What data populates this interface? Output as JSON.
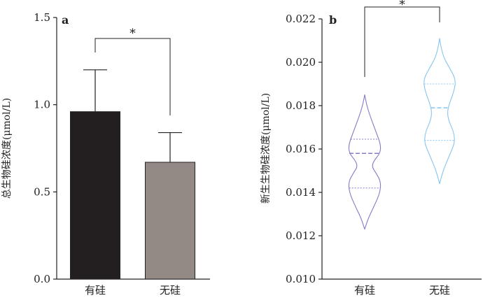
{
  "chart_data": [
    {
      "type": "bar",
      "panel_label": "a",
      "ylabel": "总生物硅浓度(μmol/L)",
      "categories": [
        "有硅",
        "无硅"
      ],
      "values": [
        0.96,
        0.67
      ],
      "error_upper": [
        1.2,
        0.84
      ],
      "ylim": [
        0,
        1.5
      ],
      "yticks": [
        0.0,
        0.5,
        1.0,
        1.5
      ],
      "ytick_labels": [
        "0.0",
        "0.5",
        "1.0",
        "1.5"
      ],
      "colors": [
        "#231f20",
        "#938a86"
      ],
      "significance": "*"
    },
    {
      "type": "violin",
      "panel_label": "b",
      "ylabel": "新生生物硅浓度(μmol/L)",
      "categories": [
        "有硅",
        "无硅"
      ],
      "ylim": [
        0.01,
        0.022
      ],
      "yticks": [
        0.01,
        0.012,
        0.014,
        0.016,
        0.018,
        0.02,
        0.022
      ],
      "ytick_labels": [
        "0.010",
        "0.012",
        "0.014",
        "0.016",
        "0.018",
        "0.020",
        "0.022"
      ],
      "series": [
        {
          "category": "有硅",
          "color": "#8a78c8",
          "min": 0.0123,
          "max": 0.0185,
          "q1": 0.0142,
          "median": 0.0158,
          "q3": 0.01645,
          "profile": [
            [
              0.0123,
              0
            ],
            [
              0.0128,
              5
            ],
            [
              0.0134,
              14
            ],
            [
              0.014,
              22
            ],
            [
              0.0145,
              23
            ],
            [
              0.0149,
              16
            ],
            [
              0.0152,
              10
            ],
            [
              0.0155,
              14
            ],
            [
              0.0158,
              22
            ],
            [
              0.0162,
              23
            ],
            [
              0.0168,
              16
            ],
            [
              0.0175,
              8
            ],
            [
              0.018,
              3
            ],
            [
              0.0185,
              0
            ]
          ]
        },
        {
          "category": "无硅",
          "color": "#86c6ee",
          "min": 0.0144,
          "max": 0.0211,
          "q1": 0.0164,
          "median": 0.0179,
          "q3": 0.019,
          "profile": [
            [
              0.0144,
              0
            ],
            [
              0.015,
              5
            ],
            [
              0.0157,
              14
            ],
            [
              0.0163,
              22
            ],
            [
              0.0168,
              20
            ],
            [
              0.0173,
              13
            ],
            [
              0.0177,
              11
            ],
            [
              0.0181,
              14
            ],
            [
              0.0187,
              21
            ],
            [
              0.0192,
              23
            ],
            [
              0.0197,
              15
            ],
            [
              0.0202,
              6
            ],
            [
              0.0207,
              2
            ],
            [
              0.0211,
              0
            ]
          ]
        }
      ],
      "significance": "*"
    }
  ]
}
